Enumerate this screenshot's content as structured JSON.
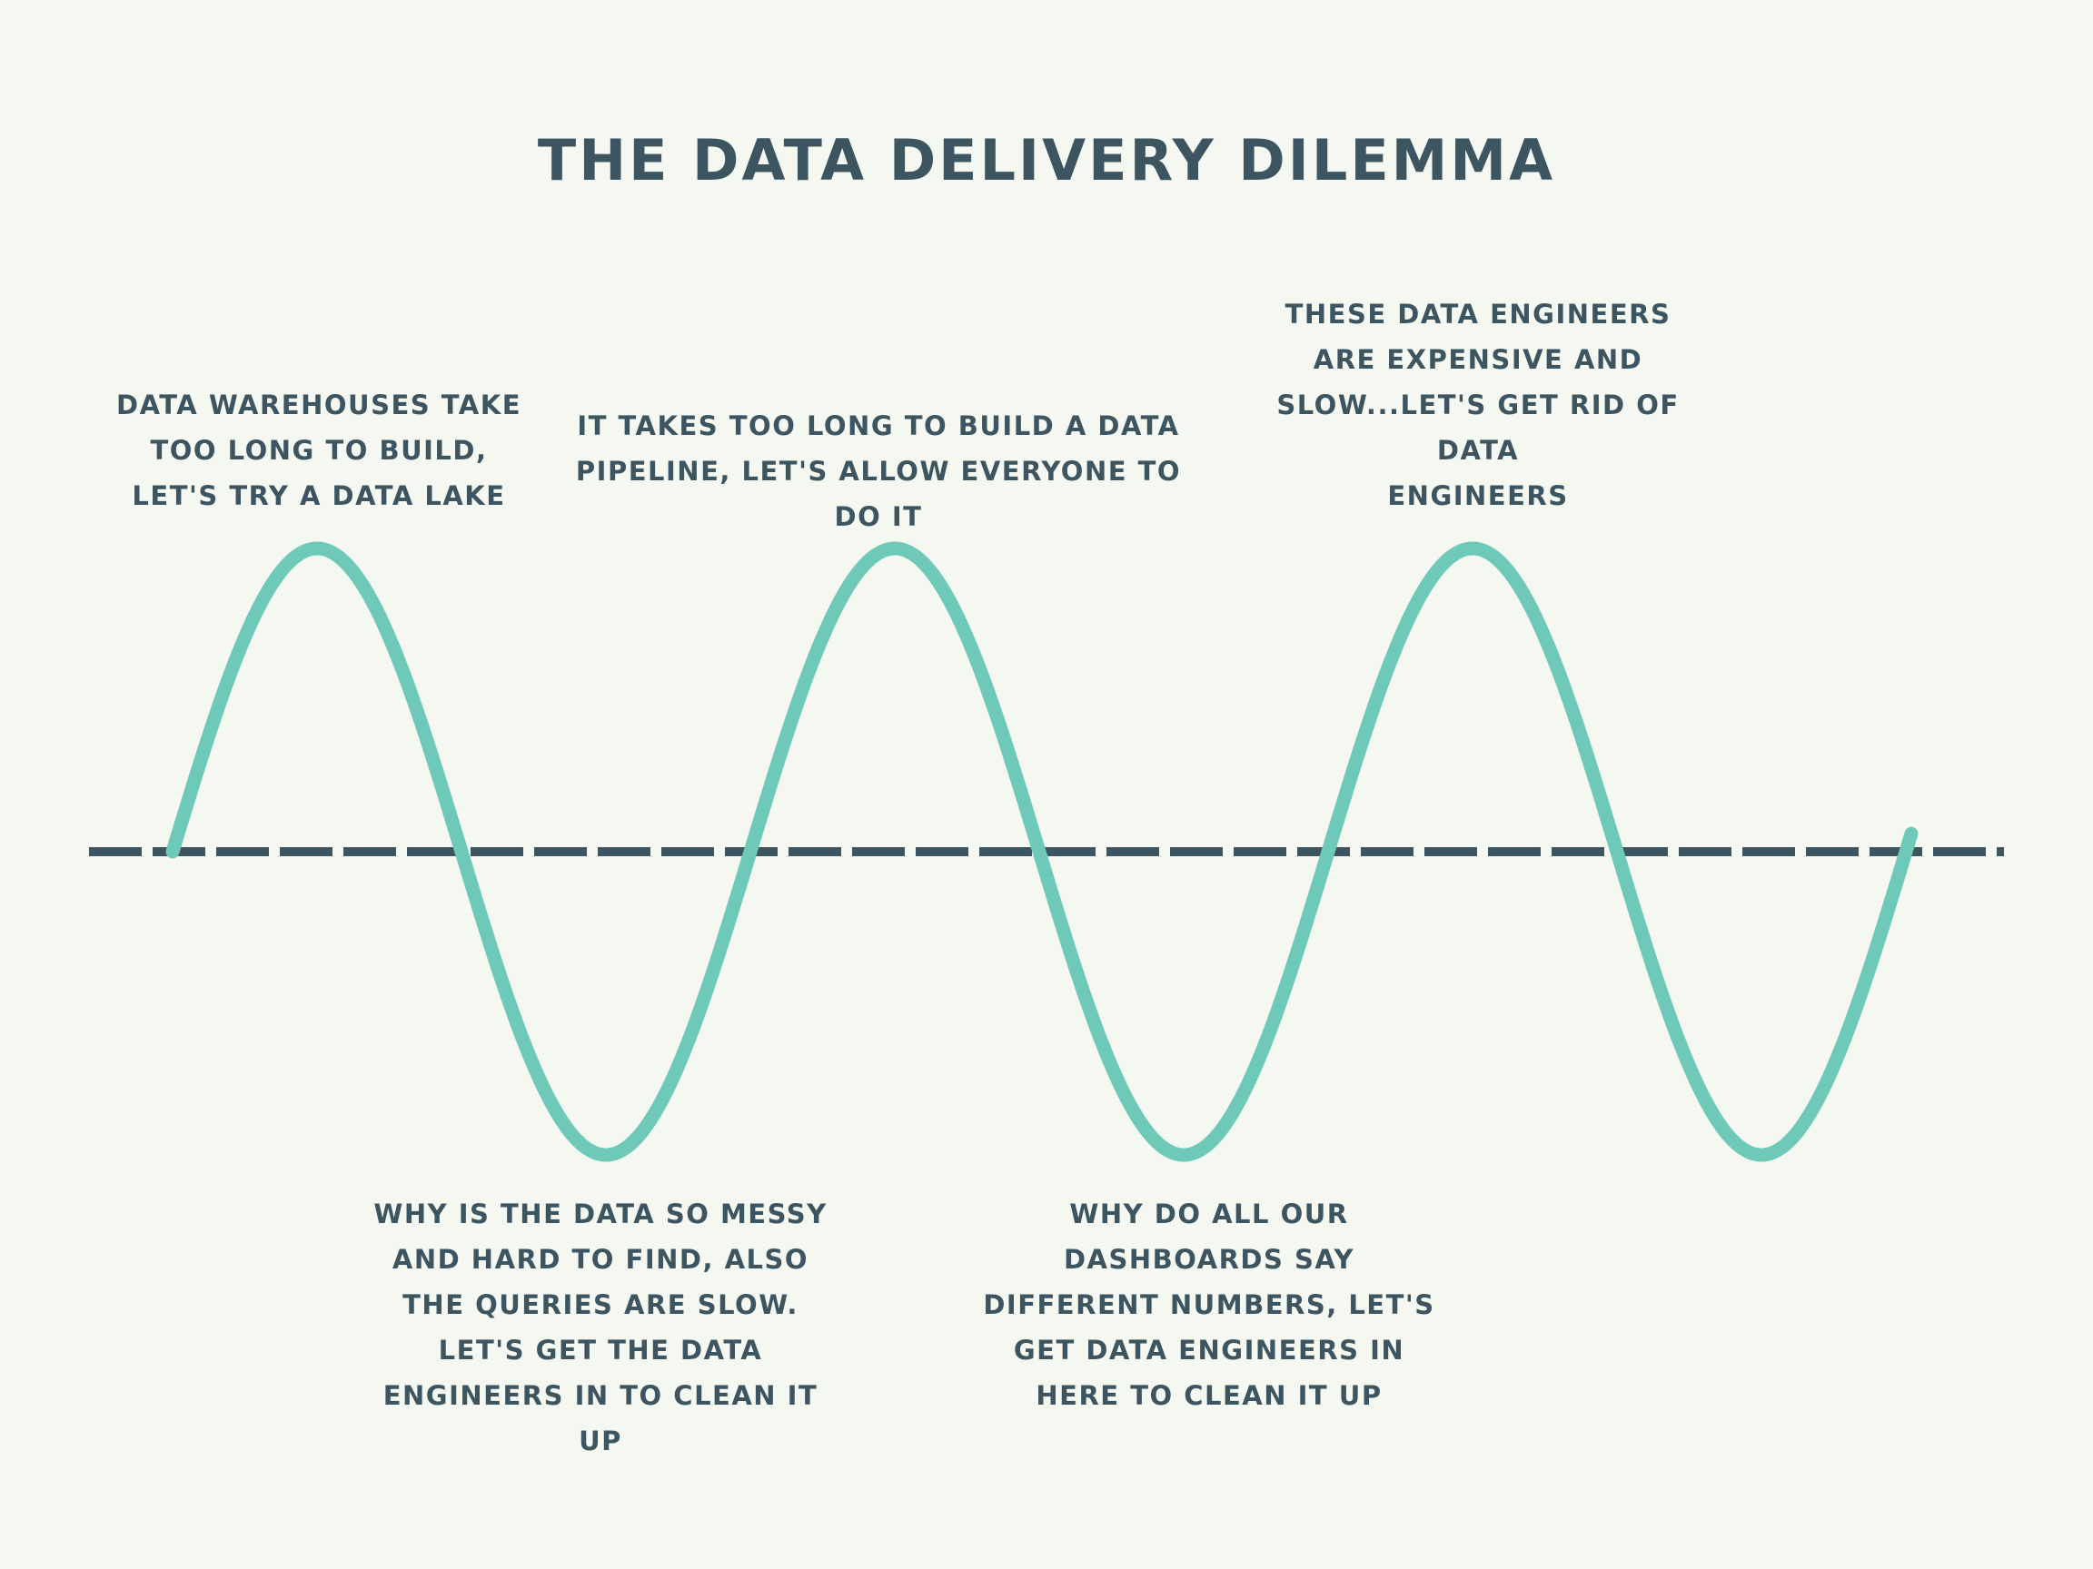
{
  "title": "THE DATA DELIVERY DILEMMA",
  "colors": {
    "background": "#f5f8f0",
    "wave": "#6ec9b8",
    "axis": "#3d5560",
    "text": "#3d5560"
  },
  "notes": {
    "peak_1": "DATA WAREHOUSES TAKE\nTOO LONG TO BUILD,\nLET'S TRY A DATA LAKE",
    "trough_1": "WHY IS THE DATA SO MESSY\nAND HARD TO FIND, ALSO\nTHE QUERIES ARE SLOW.\nLET'S GET THE DATA\nENGINEERS IN TO CLEAN IT\nUP",
    "peak_2": "IT TAKES TOO LONG TO BUILD A DATA\nPIPELINE, LET'S ALLOW EVERYONE TO\nDO IT",
    "trough_2": "WHY DO ALL OUR\nDASHBOARDS SAY\nDIFFERENT NUMBERS, LET'S\nGET DATA ENGINEERS IN\nHERE TO CLEAN IT UP",
    "peak_3": "THESE DATA ENGINEERS\nARE EXPENSIVE AND\nSLOW...LET'S GET RID OF\nDATA\nENGINEERS"
  }
}
